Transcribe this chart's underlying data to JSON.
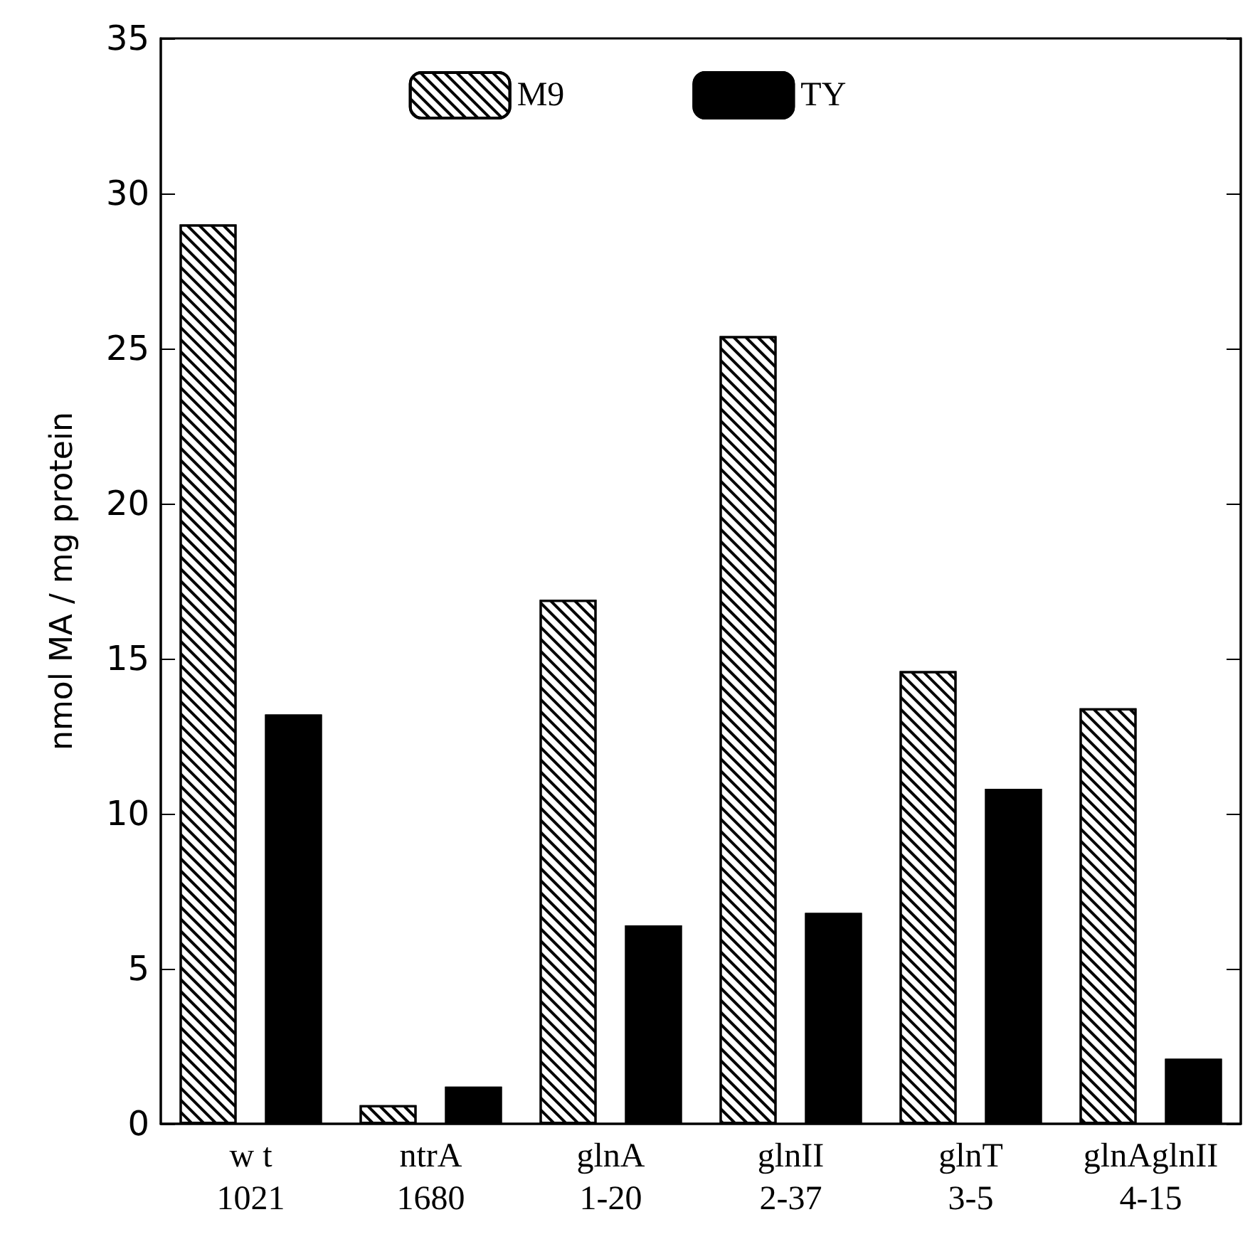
{
  "chart_data": {
    "type": "bar",
    "ylabel": "nmol MA / mg protein",
    "categories": [
      "w t\n1021",
      "ntrA\n1680",
      "glnA\n1-20",
      "glnII\n2-37",
      "glnT\n3-5",
      "glnAglnII\n4-15"
    ],
    "series": [
      {
        "name": "M9",
        "color": "#ffffff",
        "values": [
          29,
          0.6,
          16.9,
          25.4,
          14.6,
          13.4
        ]
      },
      {
        "name": "TY",
        "color": "#000000",
        "values": [
          13.2,
          1.2,
          6.4,
          6.8,
          10.8,
          2.1
        ]
      }
    ],
    "ylim": [
      0,
      35
    ],
    "yticks": [
      0,
      5,
      10,
      15,
      20,
      25,
      30,
      35
    ],
    "grid": false,
    "legend": "top"
  }
}
